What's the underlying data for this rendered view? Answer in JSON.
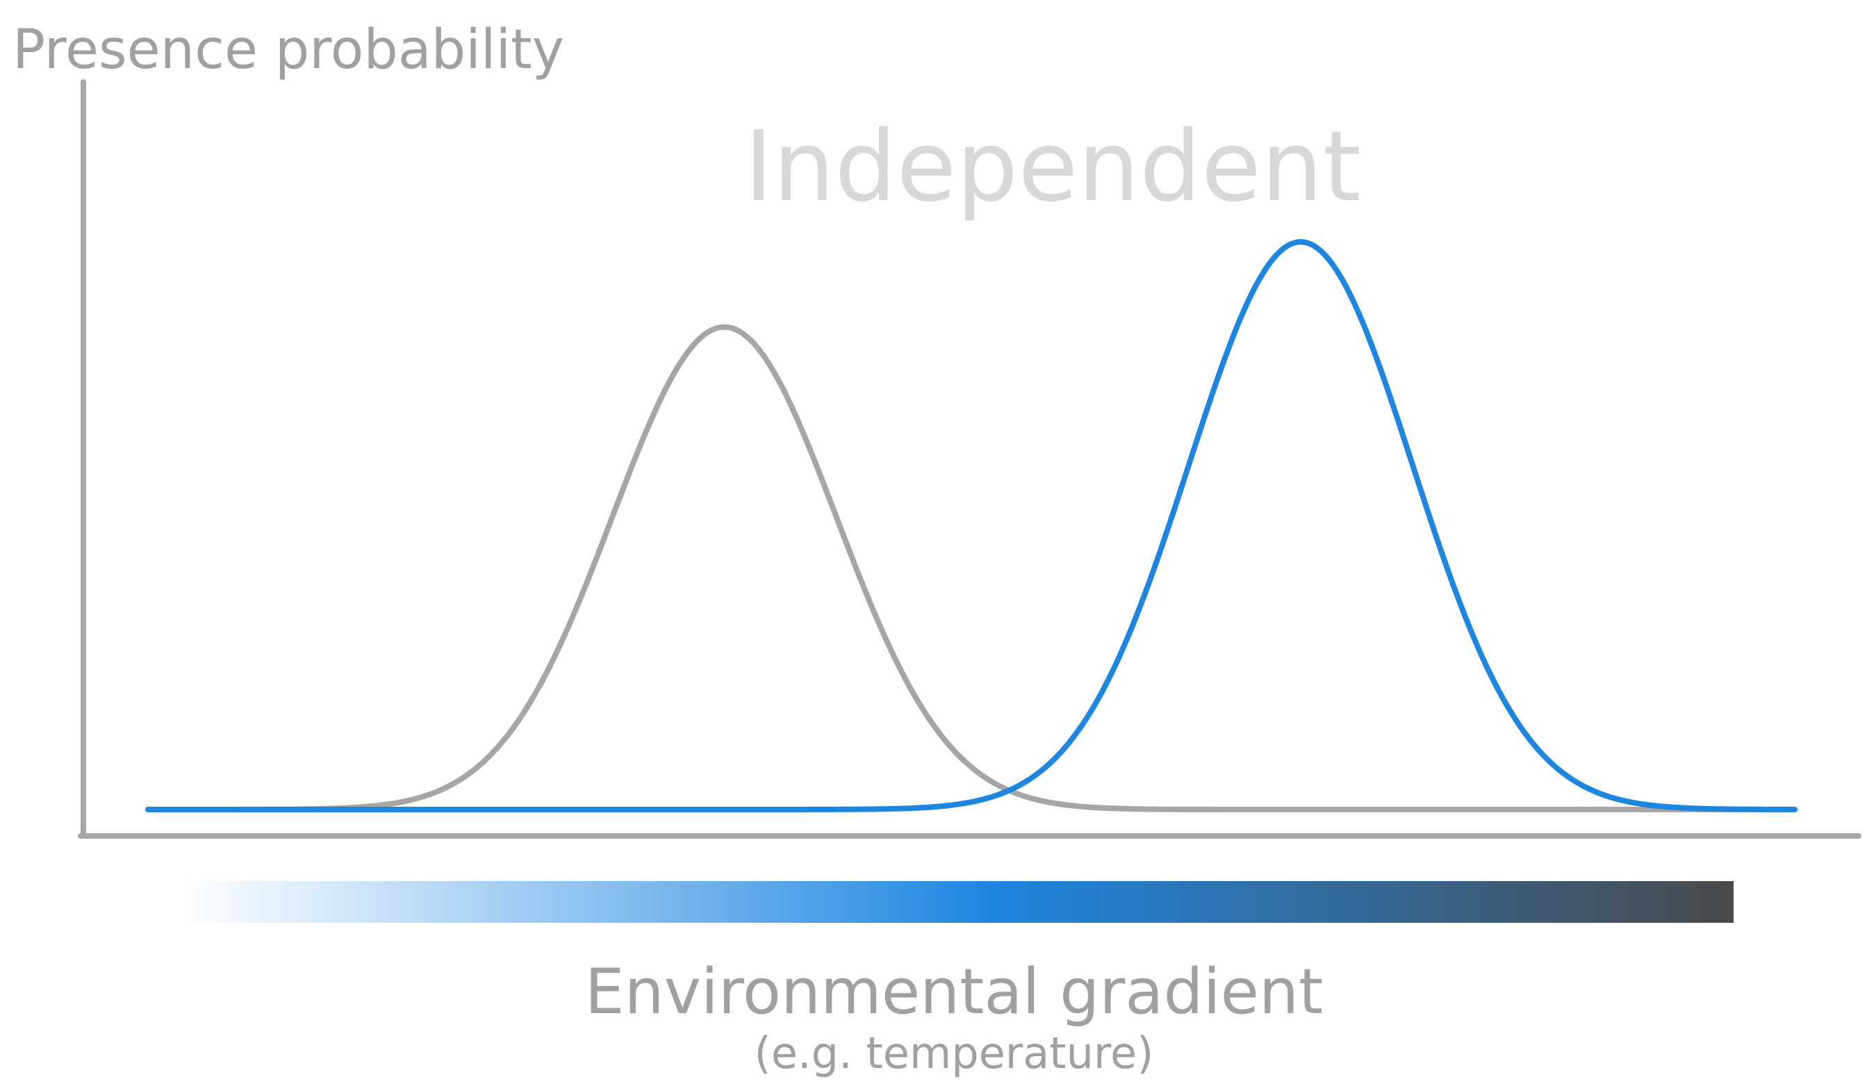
{
  "y_axis_label": "Presence probability",
  "panel_title": "Independent",
  "x_axis_label": "Environmental gradient",
  "x_axis_sublabel": "(e.g. temperature)",
  "colors": {
    "axis": "#a6a6a6",
    "curve_grey": "#a6a6a6",
    "curve_blue": "#1f86e0",
    "title_faint": "#d8d8d8",
    "label": "#a0a0a0",
    "gradient_start": "#ffffff",
    "gradient_mid": "#1f86e0",
    "gradient_end": "#4a4a4a"
  },
  "curves": [
    {
      "name": "",
      "color_key": "curve_grey",
      "peak_position": 0.35,
      "peak_height": 0.85,
      "spread": 0.068
    },
    {
      "name": "",
      "color_key": "curve_blue",
      "peak_position": 0.7,
      "peak_height": 1.0,
      "spread": 0.068
    }
  ]
}
